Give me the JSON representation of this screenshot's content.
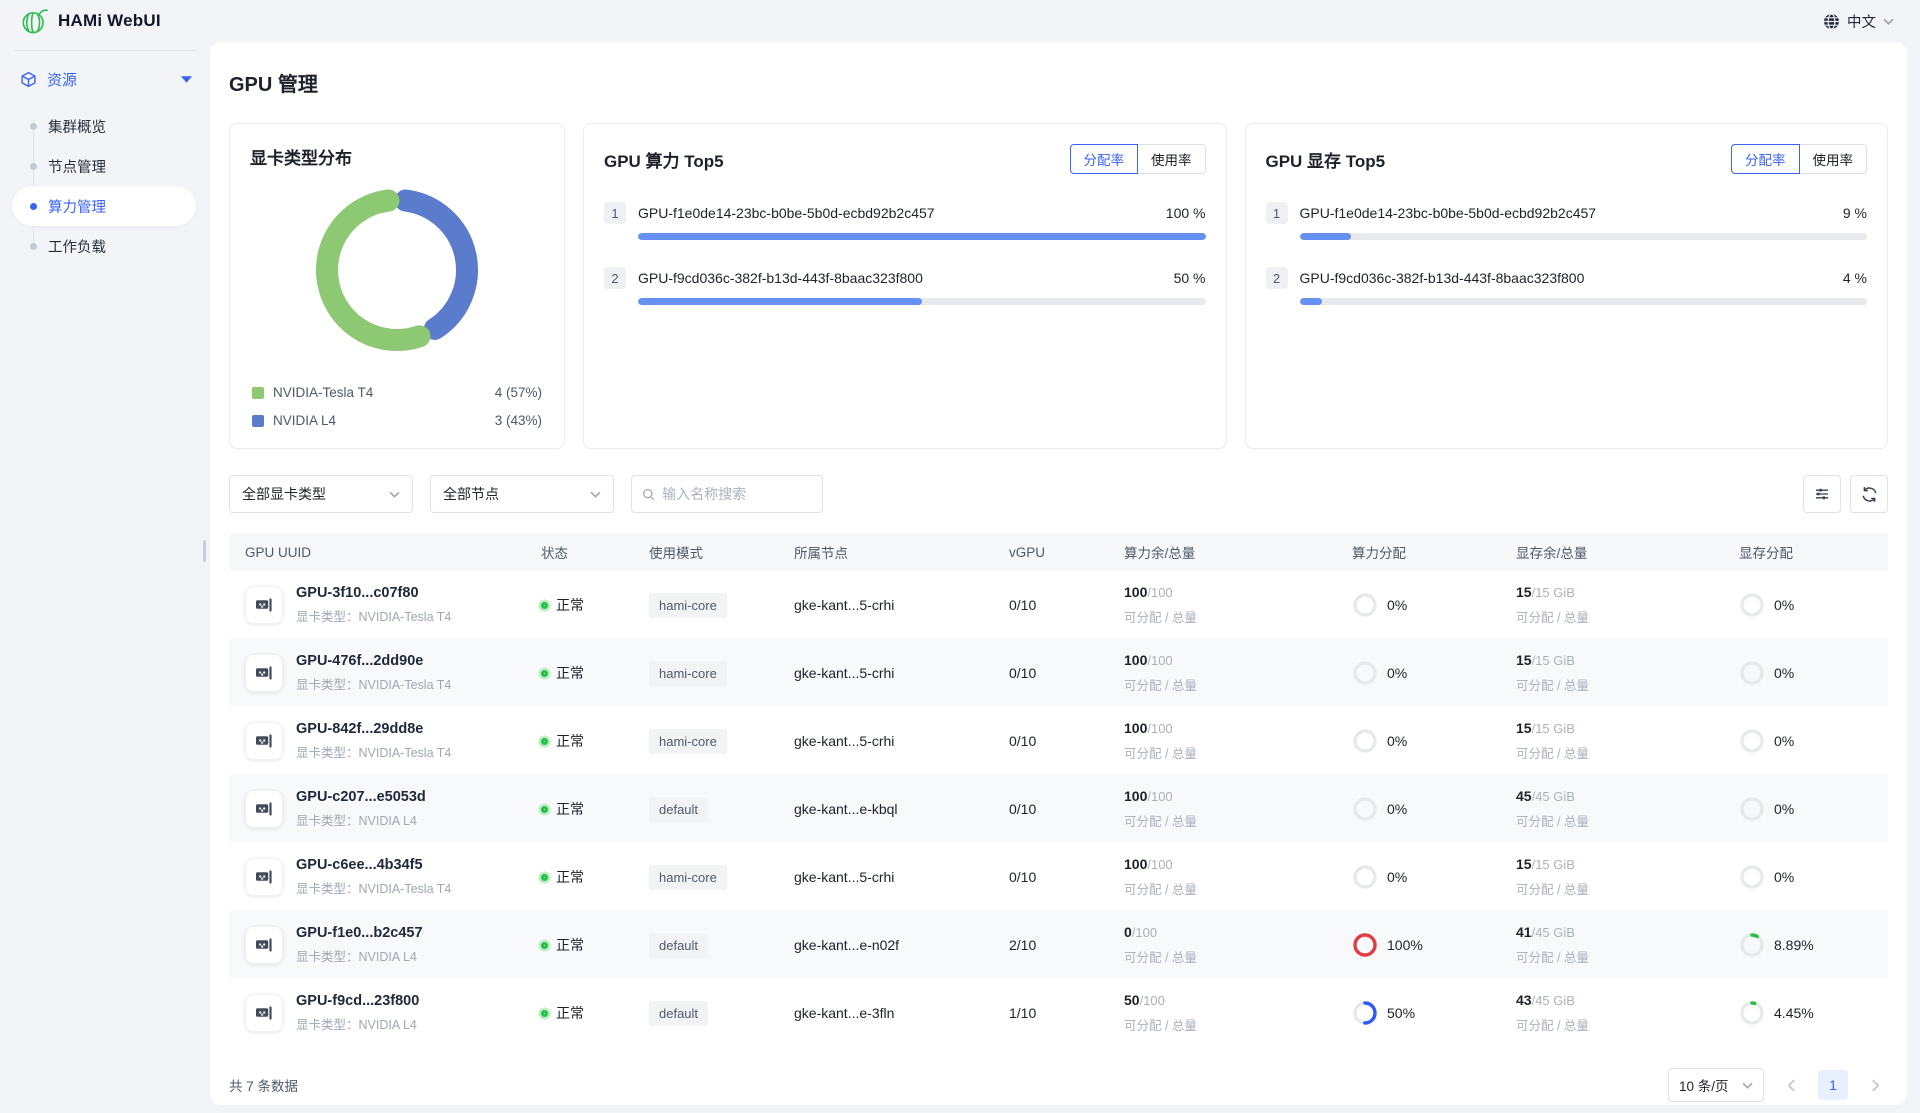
{
  "header": {
    "app_title": "HAMi WebUI",
    "language": "中文"
  },
  "sidebar": {
    "group_label": "资源",
    "items": [
      {
        "label": "集群概览",
        "active": false
      },
      {
        "label": "节点管理",
        "active": false
      },
      {
        "label": "算力管理",
        "active": true
      },
      {
        "label": "工作负载",
        "active": false
      }
    ]
  },
  "page": {
    "title": "GPU 管理"
  },
  "chart_data": [
    {
      "type": "pie",
      "title": "显卡类型分布",
      "donut": true,
      "labels": [
        "NVIDIA-Tesla T4",
        "NVIDIA L4"
      ],
      "values": [
        4,
        3
      ],
      "legend_values": [
        "4 (57%)",
        "3 (43%)"
      ],
      "colors": [
        "#8dc873",
        "#5b7bcd"
      ],
      "legend_position": "bottom"
    },
    {
      "type": "bar",
      "title": "GPU 算力 Top5",
      "toggle": [
        "分配率",
        "使用率"
      ],
      "active_toggle": "分配率",
      "bar_color": "#6690f2",
      "items": [
        {
          "rank": "1",
          "name": "GPU-f1e0de14-23bc-b0be-5b0d-ecbd92b2c457",
          "value": 100,
          "label": "100 %"
        },
        {
          "rank": "2",
          "name": "GPU-f9cd036c-382f-b13d-443f-8baac323f800",
          "value": 50,
          "label": "50 %"
        }
      ]
    },
    {
      "type": "bar",
      "title": "GPU 显存 Top5",
      "toggle": [
        "分配率",
        "使用率"
      ],
      "active_toggle": "分配率",
      "bar_color": "#6690f2",
      "items": [
        {
          "rank": "1",
          "name": "GPU-f1e0de14-23bc-b0be-5b0d-ecbd92b2c457",
          "value": 9,
          "label": "9 %"
        },
        {
          "rank": "2",
          "name": "GPU-f9cd036c-382f-b13d-443f-8baac323f800",
          "value": 4,
          "label": "4 %"
        }
      ]
    }
  ],
  "filters": {
    "gpu_type_select": "全部显卡类型",
    "node_select": "全部节点",
    "search_placeholder": "输入名称搜索"
  },
  "table": {
    "columns": [
      "GPU UUID",
      "状态",
      "使用模式",
      "所属节点",
      "vGPU",
      "算力余/总量",
      "算力分配",
      "显存余/总量",
      "显存分配"
    ],
    "type_prefix": "显卡类型：",
    "capacity_caption": "可分配 / 总量",
    "ring_colors": {
      "zero": "#e8e9ec",
      "full": "#e23b41",
      "mid": "#2f5af5",
      "low": "#26c343"
    },
    "rows": [
      {
        "uuid": "GPU-3f10...c07f80",
        "gpu_type": "NVIDIA-Tesla T4",
        "status": "正常",
        "mode": "hami-core",
        "node": "gke-kant...5-crhi",
        "vgpu": "0/10",
        "compute_avail": "100",
        "compute_total": "/100",
        "compute_alloc_pct": 0,
        "compute_alloc_label": "0%",
        "compute_alloc_color": "#e8e9ec",
        "mem_avail": "15",
        "mem_total": "/15 GiB",
        "mem_alloc_pct": 0,
        "mem_alloc_label": "0%",
        "mem_alloc_color": "#e8e9ec"
      },
      {
        "uuid": "GPU-476f...2dd90e",
        "gpu_type": "NVIDIA-Tesla T4",
        "status": "正常",
        "mode": "hami-core",
        "node": "gke-kant...5-crhi",
        "vgpu": "0/10",
        "compute_avail": "100",
        "compute_total": "/100",
        "compute_alloc_pct": 0,
        "compute_alloc_label": "0%",
        "compute_alloc_color": "#e8e9ec",
        "mem_avail": "15",
        "mem_total": "/15 GiB",
        "mem_alloc_pct": 0,
        "mem_alloc_label": "0%",
        "mem_alloc_color": "#e8e9ec"
      },
      {
        "uuid": "GPU-842f...29dd8e",
        "gpu_type": "NVIDIA-Tesla T4",
        "status": "正常",
        "mode": "hami-core",
        "node": "gke-kant...5-crhi",
        "vgpu": "0/10",
        "compute_avail": "100",
        "compute_total": "/100",
        "compute_alloc_pct": 0,
        "compute_alloc_label": "0%",
        "compute_alloc_color": "#e8e9ec",
        "mem_avail": "15",
        "mem_total": "/15 GiB",
        "mem_alloc_pct": 0,
        "mem_alloc_label": "0%",
        "mem_alloc_color": "#e8e9ec"
      },
      {
        "uuid": "GPU-c207...e5053d",
        "gpu_type": "NVIDIA L4",
        "status": "正常",
        "mode": "default",
        "node": "gke-kant...e-kbql",
        "vgpu": "0/10",
        "compute_avail": "100",
        "compute_total": "/100",
        "compute_alloc_pct": 0,
        "compute_alloc_label": "0%",
        "compute_alloc_color": "#e8e9ec",
        "mem_avail": "45",
        "mem_total": "/45 GiB",
        "mem_alloc_pct": 0,
        "mem_alloc_label": "0%",
        "mem_alloc_color": "#e8e9ec"
      },
      {
        "uuid": "GPU-c6ee...4b34f5",
        "gpu_type": "NVIDIA-Tesla T4",
        "status": "正常",
        "mode": "hami-core",
        "node": "gke-kant...5-crhi",
        "vgpu": "0/10",
        "compute_avail": "100",
        "compute_total": "/100",
        "compute_alloc_pct": 0,
        "compute_alloc_label": "0%",
        "compute_alloc_color": "#e8e9ec",
        "mem_avail": "15",
        "mem_total": "/15 GiB",
        "mem_alloc_pct": 0,
        "mem_alloc_label": "0%",
        "mem_alloc_color": "#e8e9ec"
      },
      {
        "uuid": "GPU-f1e0...b2c457",
        "gpu_type": "NVIDIA L4",
        "status": "正常",
        "mode": "default",
        "node": "gke-kant...e-n02f",
        "vgpu": "2/10",
        "compute_avail": "0",
        "compute_total": "/100",
        "compute_alloc_pct": 100,
        "compute_alloc_label": "100%",
        "compute_alloc_color": "#e23b41",
        "mem_avail": "41",
        "mem_total": "/45 GiB",
        "mem_alloc_pct": 8.89,
        "mem_alloc_label": "8.89%",
        "mem_alloc_color": "#26c343"
      },
      {
        "uuid": "GPU-f9cd...23f800",
        "gpu_type": "NVIDIA L4",
        "status": "正常",
        "mode": "default",
        "node": "gke-kant...e-3fln",
        "vgpu": "1/10",
        "compute_avail": "50",
        "compute_total": "/100",
        "compute_alloc_pct": 50,
        "compute_alloc_label": "50%",
        "compute_alloc_color": "#2f5af5",
        "mem_avail": "43",
        "mem_total": "/45 GiB",
        "mem_alloc_pct": 4.45,
        "mem_alloc_label": "4.45%",
        "mem_alloc_color": "#26c343"
      }
    ]
  },
  "footer": {
    "total_text": "共 7 条数据",
    "page_size": "10 条/页",
    "current_page": "1"
  }
}
